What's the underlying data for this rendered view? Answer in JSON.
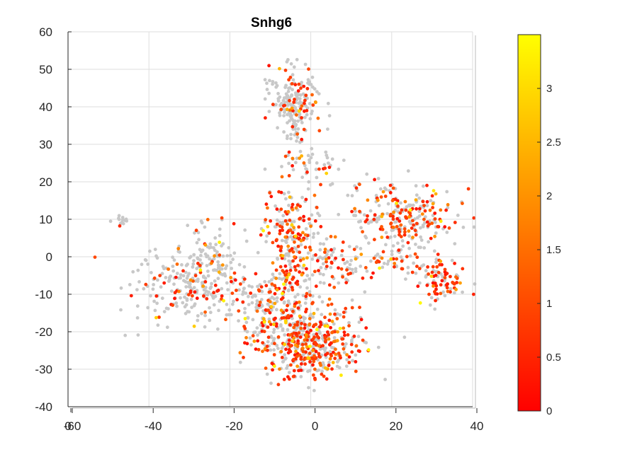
{
  "chart_data": {
    "type": "scatter",
    "title": "Snhg6",
    "xlabel": "",
    "ylabel": "",
    "xlim": [
      -60,
      40
    ],
    "ylim": [
      -40,
      60
    ],
    "xticks": [
      -60,
      -40,
      -20,
      0,
      20,
      40
    ],
    "yticks": [
      -40,
      -30,
      -20,
      -10,
      0,
      10,
      20,
      30,
      40,
      50,
      60
    ],
    "z_tick_label": "0",
    "grid": true,
    "colorbar": {
      "range": [
        0,
        3.5
      ],
      "ticks": [
        0,
        0.5,
        1,
        1.5,
        2,
        2.5,
        3
      ],
      "colormap": [
        "#ff0000",
        "#ff8000",
        "#ffff00"
      ]
    },
    "zero_color": "#c8c8c8",
    "clusters": [
      {
        "cx": -47,
        "cy": 10,
        "sx": 1.2,
        "sy": 1.0,
        "n": 14,
        "expressed_frac": 0.1
      },
      {
        "cx": -4,
        "cy": 42,
        "sx": 3.0,
        "sy": 4.0,
        "n": 180,
        "expressed_frac": 0.22
      },
      {
        "cx": -30,
        "cy": -7,
        "sx": 7.0,
        "sy": 5.5,
        "n": 260,
        "expressed_frac": 0.25
      },
      {
        "cx": -24,
        "cy": 1,
        "sx": 3.0,
        "sy": 5.0,
        "n": 60,
        "expressed_frac": 0.2
      },
      {
        "cx": 0,
        "cy": 25,
        "sx": 4.0,
        "sy": 2.0,
        "n": 45,
        "expressed_frac": 0.35
      },
      {
        "cx": -4,
        "cy": 33,
        "sx": 1.0,
        "sy": 2.5,
        "n": 20,
        "expressed_frac": 0.2
      },
      {
        "cx": -5,
        "cy": 6,
        "sx": 3.0,
        "sy": 7.0,
        "n": 200,
        "expressed_frac": 0.55
      },
      {
        "cx": 5,
        "cy": -2,
        "sx": 5.0,
        "sy": 4.0,
        "n": 90,
        "expressed_frac": 0.45
      },
      {
        "cx": 22,
        "cy": 10,
        "sx": 7.0,
        "sy": 5.0,
        "n": 280,
        "expressed_frac": 0.45
      },
      {
        "cx": 32,
        "cy": -6,
        "sx": 3.0,
        "sy": 3.0,
        "n": 90,
        "expressed_frac": 0.55
      },
      {
        "cx": 0,
        "cy": -23,
        "sx": 6.5,
        "sy": 4.5,
        "n": 480,
        "expressed_frac": 0.55
      },
      {
        "cx": -12,
        "cy": -15,
        "sx": 4.0,
        "sy": 5.0,
        "n": 120,
        "expressed_frac": 0.4
      },
      {
        "cx": -5,
        "cy": -10,
        "sx": 3.0,
        "sy": 4.0,
        "n": 80,
        "expressed_frac": 0.5
      },
      {
        "cx": 20,
        "cy": -2,
        "sx": 3.0,
        "sy": 2.0,
        "n": 30,
        "expressed_frac": 0.3
      }
    ]
  }
}
